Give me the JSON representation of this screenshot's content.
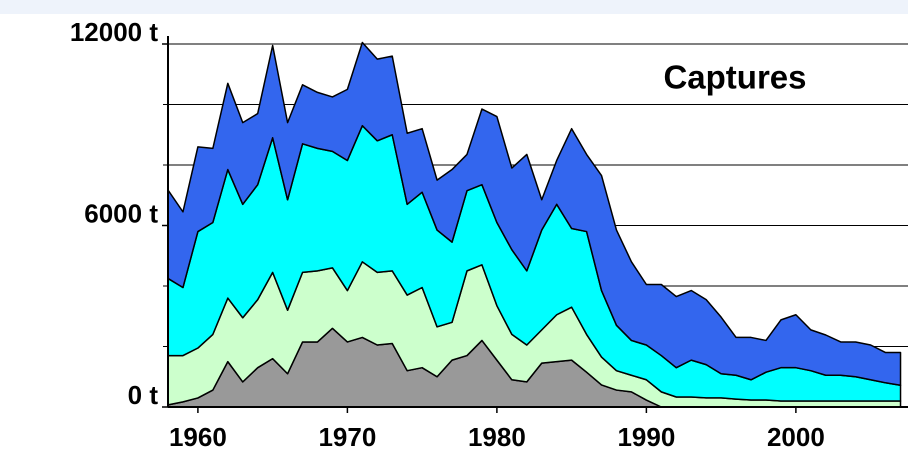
{
  "chart_data": {
    "type": "stacked_area",
    "title": "Captures",
    "x": [
      1958,
      1959,
      1960,
      1961,
      1962,
      1963,
      1964,
      1965,
      1966,
      1967,
      1968,
      1969,
      1970,
      1971,
      1972,
      1973,
      1974,
      1975,
      1976,
      1977,
      1978,
      1979,
      1980,
      1981,
      1982,
      1983,
      1984,
      1985,
      1986,
      1987,
      1988,
      1989,
      1990,
      1991,
      1992,
      1993,
      1994,
      1995,
      1996,
      1997,
      1998,
      1999,
      2000,
      2001,
      2002,
      2003,
      2004,
      2005,
      2006,
      2007
    ],
    "series": [
      {
        "color": "#999999",
        "values": [
          70,
          170,
          300,
          560,
          1500,
          830,
          1300,
          1600,
          1100,
          2150,
          2150,
          2600,
          2150,
          2300,
          2050,
          2100,
          1200,
          1300,
          1000,
          1550,
          1700,
          2200,
          1550,
          900,
          830,
          1450,
          1500,
          1550,
          1150,
          730,
          560,
          500,
          230,
          0,
          0,
          0,
          0,
          0,
          0,
          0,
          0,
          0,
          0,
          0,
          0,
          0,
          0,
          0,
          0,
          0
        ]
      },
      {
        "color": "#ccffcc",
        "values": [
          1630,
          1530,
          1650,
          1840,
          2100,
          2120,
          2250,
          2850,
          2100,
          2300,
          2350,
          2000,
          1700,
          2500,
          2400,
          2400,
          2500,
          2650,
          1650,
          1250,
          2800,
          2500,
          1800,
          1500,
          1220,
          1100,
          1550,
          1750,
          1250,
          920,
          640,
          550,
          670,
          500,
          330,
          330,
          300,
          300,
          260,
          230,
          230,
          200,
          200,
          200,
          200,
          200,
          200,
          200,
          200,
          200
        ]
      },
      {
        "color": "#00ffff",
        "values": [
          2550,
          2250,
          3850,
          3700,
          4250,
          3750,
          3800,
          4450,
          3650,
          4250,
          4050,
          3850,
          4300,
          4500,
          4350,
          4500,
          3000,
          3150,
          3200,
          2650,
          2650,
          2650,
          2750,
          2800,
          2450,
          3300,
          3650,
          2600,
          3400,
          2200,
          1500,
          1150,
          1150,
          1200,
          970,
          1220,
          1100,
          800,
          790,
          670,
          920,
          1100,
          1100,
          1000,
          850,
          850,
          800,
          700,
          600,
          520
        ]
      },
      {
        "color": "#3366ee",
        "values": [
          2920,
          2500,
          2800,
          2450,
          2850,
          2700,
          2350,
          3050,
          2550,
          1950,
          1850,
          1800,
          2350,
          2750,
          2700,
          2600,
          2350,
          2100,
          1650,
          2400,
          1200,
          2500,
          3500,
          2700,
          3850,
          1000,
          1450,
          3300,
          2550,
          3800,
          3150,
          2600,
          2000,
          2350,
          2350,
          2300,
          2150,
          1870,
          1250,
          1400,
          1050,
          1580,
          1750,
          1350,
          1330,
          1100,
          1150,
          1150,
          1000,
          1080
        ]
      }
    ],
    "xlim": [
      1958,
      2007.5
    ],
    "xticks": [
      1960,
      1970,
      1980,
      1990,
      2000
    ],
    "ylim": [
      0,
      12000
    ],
    "yticks": [
      {
        "value": 0,
        "label": "0 t"
      },
      {
        "value": 6000,
        "label": "6000 t"
      },
      {
        "value": 12000,
        "label": "12000 t"
      }
    ],
    "minor_yticks": [
      2000,
      4000,
      8000,
      10000
    ],
    "grid": true
  }
}
